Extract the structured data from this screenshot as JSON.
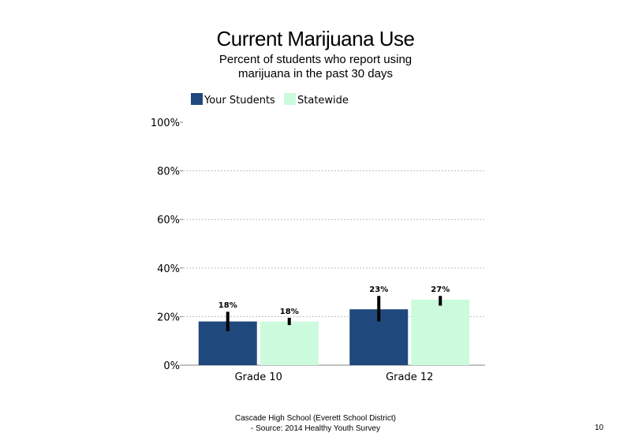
{
  "chart_data": {
    "type": "bar",
    "title": "Current Marijuana Use",
    "subtitle": "Percent of students who report using marijuana in the past 30 days",
    "categories": [
      "Grade 10",
      "Grade 12"
    ],
    "series": [
      {
        "name": "Your Students",
        "color": "#1f497d",
        "values": [
          18,
          23
        ],
        "labels": [
          "18%",
          "23%"
        ],
        "error_low": [
          14,
          18
        ],
        "error_high": [
          22,
          28.5
        ]
      },
      {
        "name": "Statewide",
        "color": "#ccfadd",
        "values": [
          18,
          27
        ],
        "labels": [
          "18%",
          "27%"
        ],
        "error_low": [
          16.5,
          24.5
        ],
        "error_high": [
          19.5,
          28.5
        ]
      }
    ],
    "y_ticks": [
      "0%",
      "20%",
      "40%",
      "60%",
      "80%",
      "100%"
    ],
    "ylim": [
      0,
      100
    ],
    "grid": true,
    "legend_position": "top-left"
  },
  "footer": {
    "line1": "Cascade High School (Everett School District)",
    "line2": "- Source: 2014 Healthy  Youth Survey"
  },
  "page_number": "10"
}
